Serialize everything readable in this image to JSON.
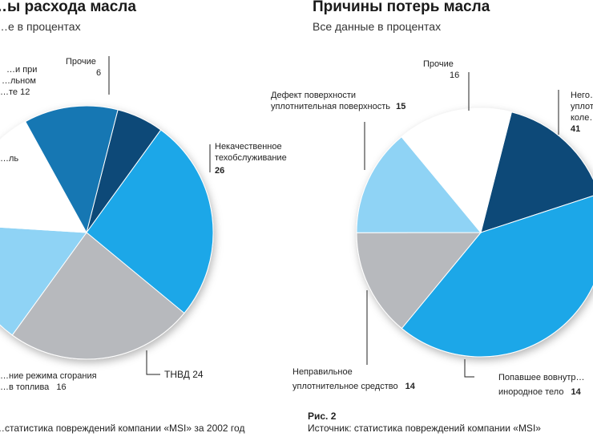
{
  "chart_data": [
    {
      "type": "pie",
      "title": "…ы расхода масла",
      "subtitle": "…е в процентах",
      "slices": [
        {
          "label": "Прочие",
          "value": 6,
          "color": "#0d4a78"
        },
        {
          "label": "Некачественное техобслуживание",
          "value": 26,
          "color": "#1ba7e8"
        },
        {
          "label": "ТНВД",
          "value": 24,
          "color": "#b7b9bd"
        },
        {
          "label": "…ние режима сгорания …в топлива",
          "value": 16,
          "color": "#8fd3f5"
        },
        {
          "label": "…ль",
          "value": 16,
          "color": "#ffffff"
        },
        {
          "label": "…и при …льном …те",
          "value": 12,
          "color": "#1577b3"
        }
      ]
    },
    {
      "type": "pie",
      "title": "Причины потерь масла",
      "subtitle": "Все данные в процентах",
      "slices": [
        {
          "label": "Прочие",
          "value": 16,
          "color": "#0d4a78"
        },
        {
          "label": "Него… уплот… коле…",
          "value": 41,
          "color": "#1ba7e8"
        },
        {
          "label": "Попавшее вовнутр… инородное тело",
          "value": 14,
          "color": "#b7b9bd"
        },
        {
          "label": "Неправильное уплотнительное средство",
          "value": 14,
          "color": "#8fd3f5"
        },
        {
          "label": "Дефект поверхности уплотнительная поверхность",
          "value": 15,
          "color": "#ffffff"
        }
      ]
    }
  ],
  "labels": {
    "left": {
      "other_text": "Прочие",
      "other_val": "6",
      "poor_l1": "Некачественное",
      "poor_l2": "техобслуживание",
      "poor_val": "26",
      "tnvd": "ТНВД 24",
      "comb_l1": "…ние режима сгорания",
      "comb_l2": "…в топлива",
      "comb_val": "16",
      "small_l1": "…и при",
      "small_l2": "…льном",
      "small_l3": "…те 12",
      "white_text": "…ль"
    },
    "right": {
      "other_text": "Прочие",
      "other_val": "16",
      "defect_l1": "Дефект поверхности",
      "defect_l2": "уплотнительная поверхность",
      "defect_val": "15",
      "big_l1": "Него…",
      "big_l2": "уплот…",
      "big_l3": "коле…",
      "big_val": "41",
      "improper_l1": "Неправильное",
      "improper_l2": "уплотнительное средство",
      "improper_val": "14",
      "foreign_l1": "Попавшее вовнутр…",
      "foreign_l2": "инородное тело",
      "foreign_val": "14"
    }
  },
  "captions": {
    "left": "…статистика повреждений компании «MSI» за 2002 год",
    "fig": "Рис. 2",
    "right": "Источник: статистика повреждений компании «MSI»"
  }
}
